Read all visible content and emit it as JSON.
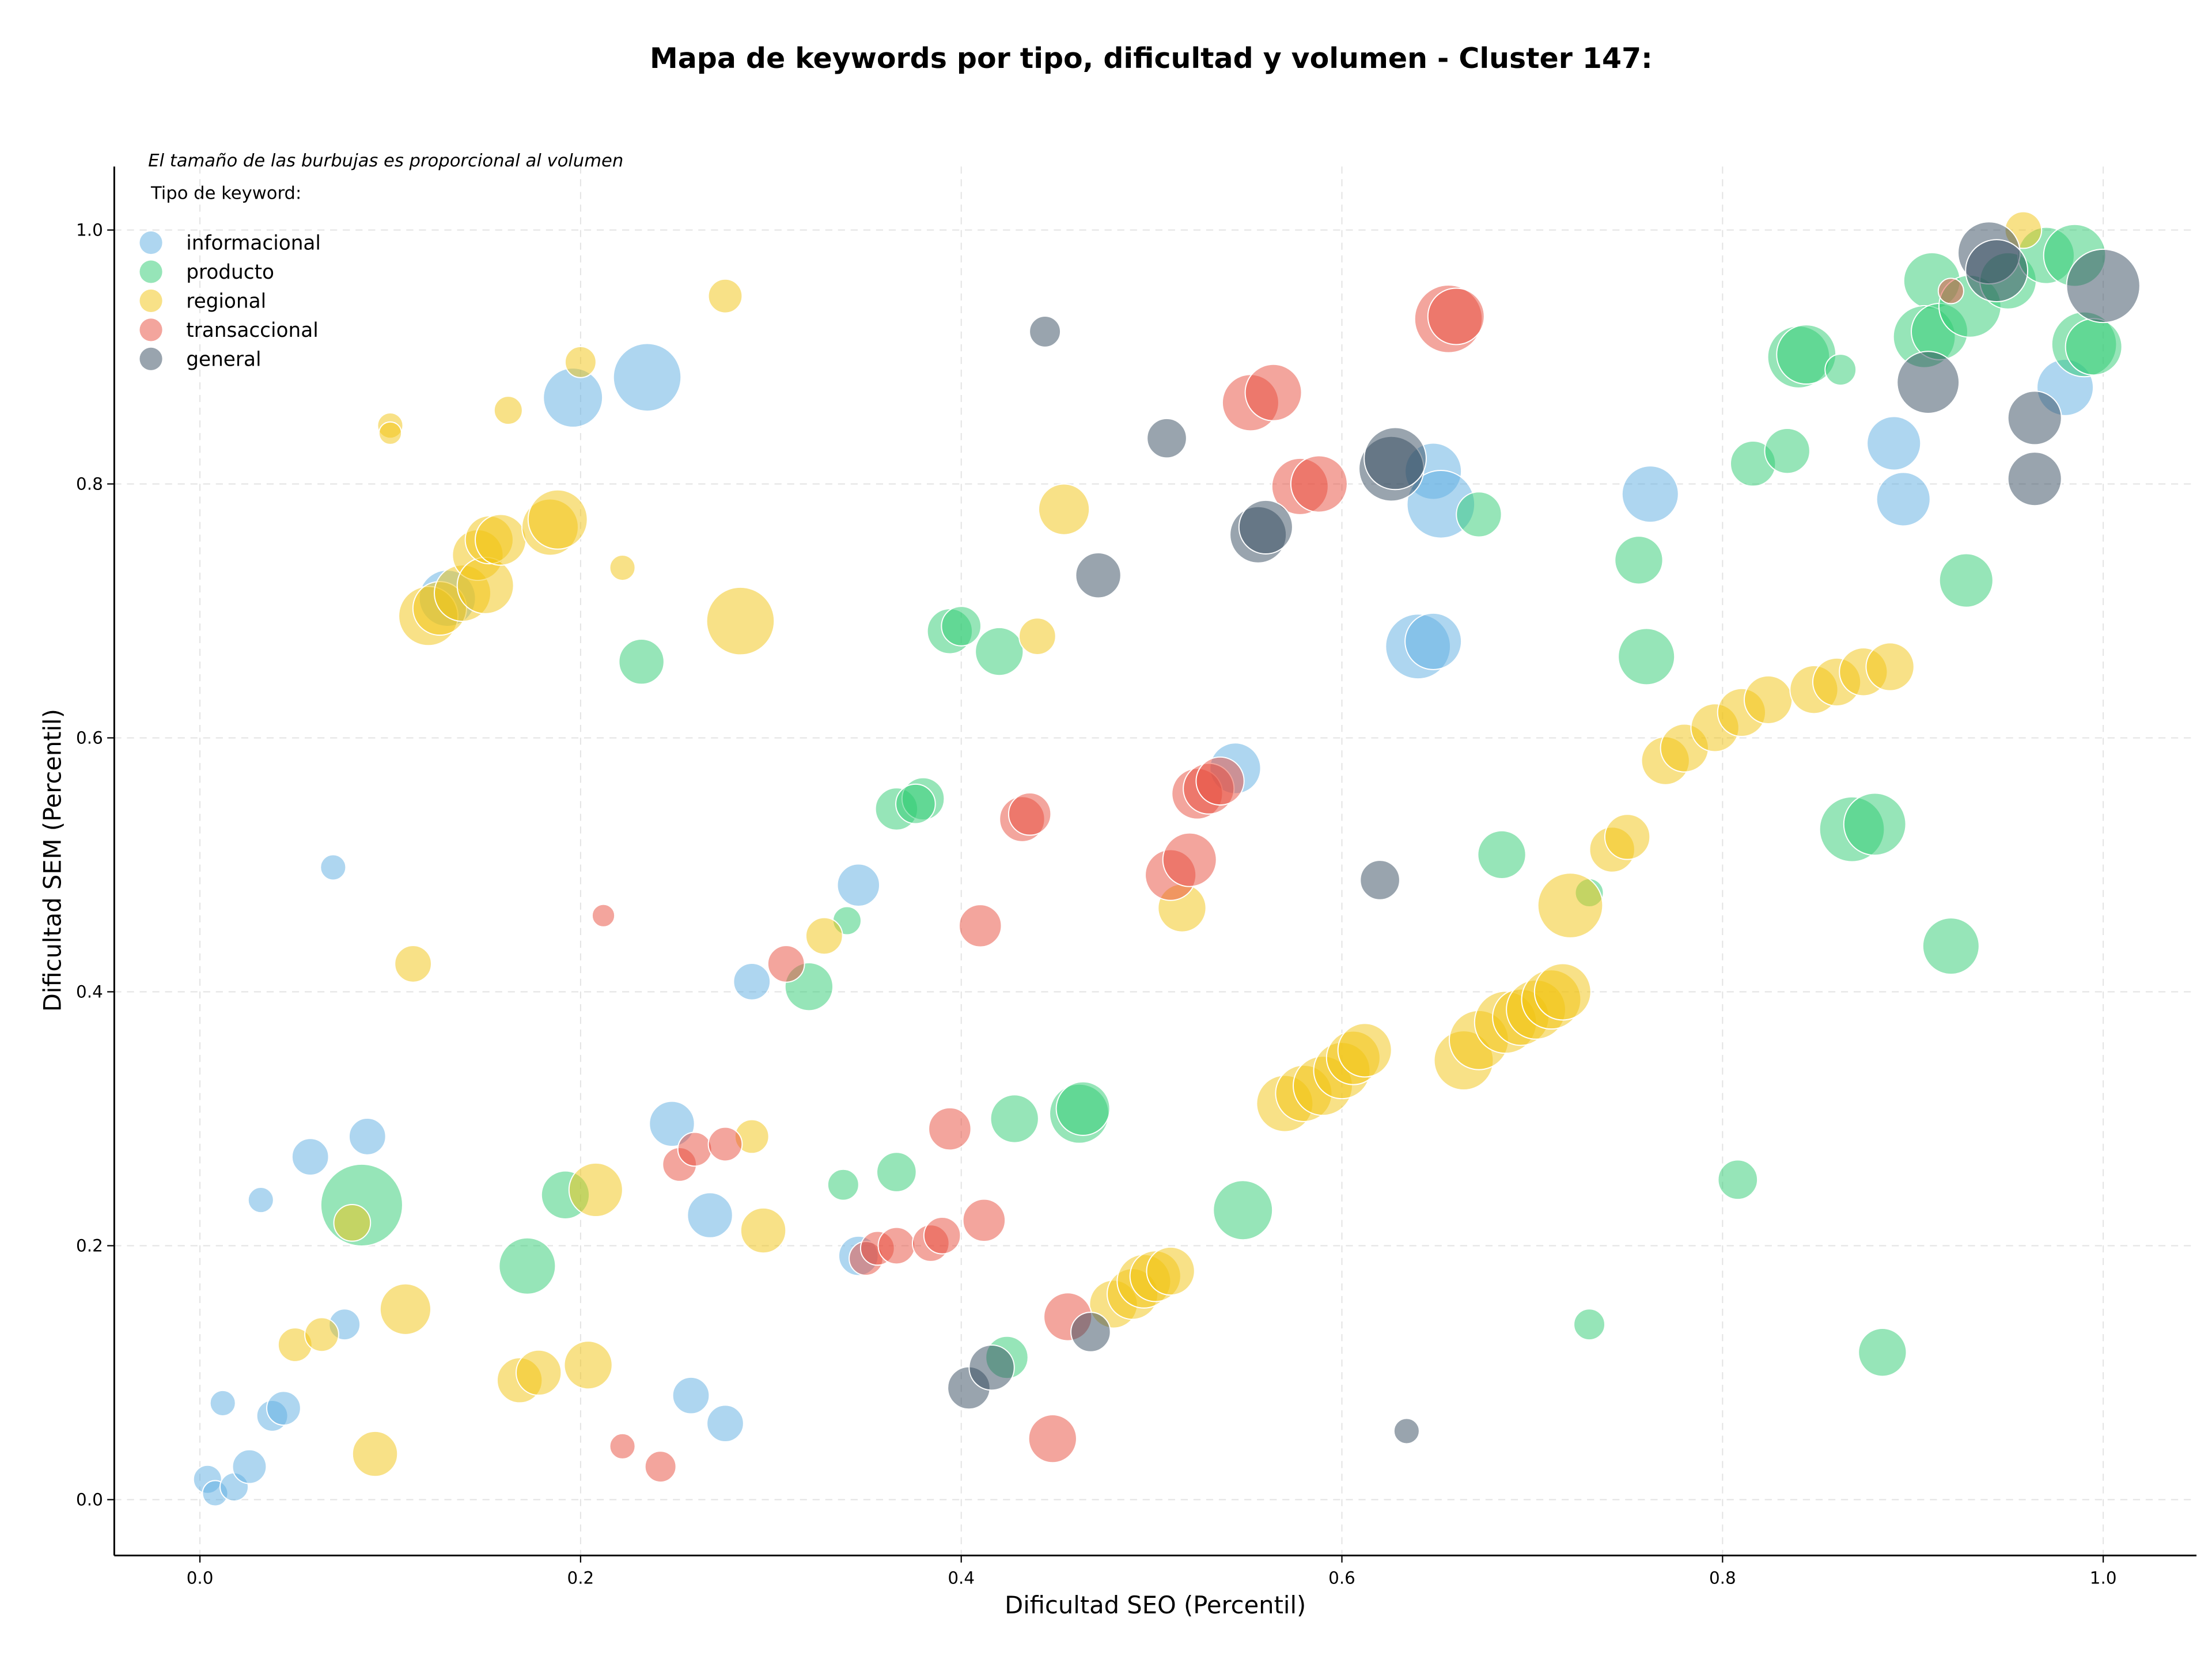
{
  "chart_data": {
    "type": "bubble",
    "title": "Mapa de keywords por tipo, dificultad y volumen - Cluster 147:",
    "note": "El tamaño de las burbujas es proporcional al volumen",
    "legend_title": "Tipo de keyword:",
    "legend_position": "upper left",
    "x_label": "Dificultad SEO (Percentil)",
    "y_label": "Dificultad SEM (Percentil)",
    "xlim": [
      -0.045,
      1.049
    ],
    "ylim": [
      -0.044,
      1.05
    ],
    "xticks": [
      {
        "value": 0,
        "label": "0.0"
      },
      0.2,
      0.4,
      0.6,
      0.8,
      {
        "value": 1,
        "label": "1.0"
      }
    ],
    "yticks": [
      {
        "value": 0,
        "label": "0.0"
      },
      0.2,
      0.4,
      0.6,
      0.8,
      {
        "value": 1,
        "label": "1.0"
      }
    ],
    "grid": true,
    "series": [
      {
        "name": "informacional",
        "color": "#5dade2",
        "x": [
          0.004,
          0.008,
          0.012,
          0.018,
          0.026,
          0.038,
          0.044,
          0.032,
          0.058,
          0.07,
          0.076,
          0.088,
          0.196,
          0.235,
          0.13,
          0.248,
          0.258,
          0.268,
          0.276,
          0.29,
          0.346,
          0.346,
          0.544,
          0.648,
          0.652,
          0.64,
          0.648,
          0.762,
          0.89,
          0.895,
          0.98
        ],
        "y": [
          0.016,
          0.005,
          0.076,
          0.01,
          0.026,
          0.066,
          0.072,
          0.236,
          0.27,
          0.498,
          0.138,
          0.286,
          0.868,
          0.884,
          0.71,
          0.296,
          0.082,
          0.224,
          0.06,
          0.408,
          0.484,
          0.192,
          0.576,
          0.81,
          0.784,
          0.672,
          0.676,
          0.792,
          0.832,
          0.788,
          0.876
        ],
        "sizes": [
          100,
          81,
          81,
          100,
          144,
          121,
          144,
          81,
          169,
          81,
          121,
          169,
          441,
          576,
          400,
          256,
          169,
          256,
          169,
          169,
          225,
          196,
          324,
          400,
          576,
          529,
          400,
          400,
          361,
          361,
          400
        ]
      },
      {
        "name": "producto",
        "color": "#2ecc71",
        "x": [
          0.085,
          0.172,
          0.192,
          0.232,
          0.32,
          0.338,
          0.34,
          0.366,
          0.366,
          0.38,
          0.376,
          0.394,
          0.4,
          0.42,
          0.424,
          0.428,
          0.462,
          0.464,
          0.548,
          0.672,
          0.684,
          0.73,
          0.73,
          0.756,
          0.76,
          0.808,
          0.816,
          0.834,
          0.84,
          0.844,
          0.862,
          0.868,
          0.88,
          0.884,
          0.92,
          0.928,
          0.91,
          0.906,
          0.914,
          0.93,
          0.95,
          0.97,
          0.985,
          0.99,
          0.995
        ],
        "y": [
          0.232,
          0.184,
          0.24,
          0.66,
          0.404,
          0.248,
          0.456,
          0.258,
          0.544,
          0.552,
          0.548,
          0.684,
          0.688,
          0.668,
          0.112,
          0.3,
          0.304,
          0.308,
          0.228,
          0.776,
          0.508,
          0.478,
          0.138,
          0.74,
          0.664,
          0.252,
          0.816,
          0.826,
          0.9,
          0.902,
          0.89,
          0.528,
          0.532,
          0.116,
          0.436,
          0.724,
          0.96,
          0.916,
          0.92,
          0.94,
          0.96,
          0.98,
          0.98,
          0.91,
          0.908
        ],
        "sizes": [
          841,
          400,
          289,
          256,
          289,
          121,
          100,
          196,
          225,
          225,
          196,
          256,
          196,
          289,
          225,
          289,
          441,
          361,
          441,
          256,
          289,
          100,
          121,
          289,
          400,
          196,
          256,
          256,
          484,
          441,
          121,
          529,
          484,
          289,
          400,
          361,
          400,
          484,
          400,
          484,
          400,
          400,
          484,
          529,
          400
        ]
      },
      {
        "name": "regional",
        "color": "#f1c40f",
        "x": [
          0.05,
          0.064,
          0.08,
          0.092,
          0.1,
          0.1,
          0.108,
          0.112,
          0.12,
          0.126,
          0.138,
          0.146,
          0.15,
          0.152,
          0.158,
          0.162,
          0.168,
          0.178,
          0.184,
          0.188,
          0.2,
          0.204,
          0.208,
          0.222,
          0.276,
          0.284,
          0.29,
          0.296,
          0.328,
          0.44,
          0.454,
          0.48,
          0.49,
          0.496,
          0.502,
          0.51,
          0.516,
          0.57,
          0.58,
          0.59,
          0.6,
          0.606,
          0.612,
          0.664,
          0.672,
          0.686,
          0.694,
          0.702,
          0.71,
          0.716,
          0.72,
          0.742,
          0.75,
          0.77,
          0.78,
          0.796,
          0.81,
          0.824,
          0.848,
          0.86,
          0.874,
          0.888,
          0.958
        ],
        "y": [
          0.122,
          0.13,
          0.218,
          0.036,
          0.846,
          0.84,
          0.15,
          0.422,
          0.696,
          0.702,
          0.714,
          0.744,
          0.72,
          0.756,
          0.756,
          0.858,
          0.094,
          0.1,
          0.766,
          0.772,
          0.896,
          0.106,
          0.244,
          0.734,
          0.948,
          0.692,
          0.286,
          0.212,
          0.444,
          0.68,
          0.78,
          0.154,
          0.162,
          0.172,
          0.176,
          0.18,
          0.466,
          0.312,
          0.32,
          0.326,
          0.338,
          0.348,
          0.354,
          0.346,
          0.362,
          0.376,
          0.38,
          0.386,
          0.394,
          0.4,
          0.468,
          0.512,
          0.522,
          0.582,
          0.592,
          0.608,
          0.62,
          0.63,
          0.638,
          0.644,
          0.652,
          0.656,
          1.0
        ],
        "sizes": [
          144,
          144,
          169,
          256,
          81,
          64,
          324,
          169,
          441,
          361,
          400,
          324,
          400,
          289,
          324,
          100,
          256,
          256,
          400,
          441,
          121,
          289,
          361,
          81,
          144,
          576,
          144,
          256,
          169,
          169,
          324,
          289,
          324,
          361,
          324,
          289,
          289,
          400,
          400,
          441,
          400,
          361,
          361,
          441,
          441,
          484,
          400,
          441,
          441,
          400,
          529,
          256,
          256,
          289,
          289,
          289,
          289,
          289,
          289,
          289,
          289,
          289,
          169
        ]
      },
      {
        "name": "transaccional",
        "color": "#e74c3c",
        "x": [
          0.212,
          0.222,
          0.242,
          0.252,
          0.26,
          0.276,
          0.308,
          0.35,
          0.356,
          0.366,
          0.384,
          0.39,
          0.394,
          0.41,
          0.412,
          0.432,
          0.436,
          0.448,
          0.456,
          0.51,
          0.52,
          0.524,
          0.53,
          0.536,
          0.552,
          0.564,
          0.578,
          0.588,
          0.656,
          0.66,
          0.92
        ],
        "y": [
          0.46,
          0.042,
          0.026,
          0.264,
          0.276,
          0.28,
          0.422,
          0.19,
          0.198,
          0.2,
          0.202,
          0.208,
          0.292,
          0.452,
          0.22,
          0.536,
          0.54,
          0.048,
          0.144,
          0.492,
          0.504,
          0.556,
          0.56,
          0.566,
          0.864,
          0.872,
          0.798,
          0.8,
          0.93,
          0.932,
          0.952
        ],
        "sizes": [
          64,
          81,
          121,
          144,
          144,
          144,
          169,
          144,
          144,
          169,
          169,
          169,
          225,
          225,
          225,
          256,
          225,
          289,
          289,
          324,
          361,
          324,
          324,
          289,
          400,
          400,
          400,
          400,
          576,
          400,
          81
        ]
      },
      {
        "name": "general",
        "color": "#34495e",
        "x": [
          0.404,
          0.416,
          0.468,
          0.444,
          0.472,
          0.508,
          0.556,
          0.56,
          0.62,
          0.626,
          0.628,
          0.634,
          0.908,
          0.94,
          0.944,
          0.964,
          0.964,
          1.0
        ],
        "y": [
          0.088,
          0.104,
          0.132,
          0.92,
          0.728,
          0.836,
          0.76,
          0.766,
          0.488,
          0.812,
          0.82,
          0.054,
          0.88,
          0.982,
          0.968,
          0.852,
          0.804,
          0.956
        ],
        "sizes": [
          225,
          256,
          196,
          121,
          256,
          196,
          400,
          361,
          196,
          529,
          484,
          81,
          484,
          484,
          484,
          361,
          361,
          676
        ]
      }
    ]
  }
}
